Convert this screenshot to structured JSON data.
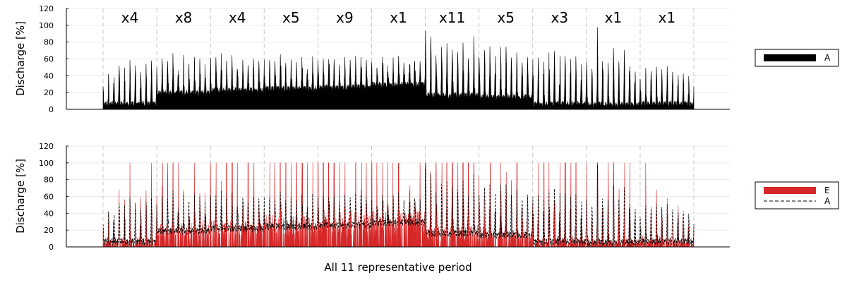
{
  "chart_data": [
    {
      "type": "area",
      "ylabel": "Discharge [%]",
      "ylim": [
        0,
        120
      ],
      "yticks": [
        0,
        20,
        40,
        60,
        80,
        100,
        120
      ],
      "grid": true,
      "legend_position": "right",
      "period_labels": [
        "x4",
        "x8",
        "x4",
        "x5",
        "x9",
        "x1",
        "x11",
        "x5",
        "x3",
        "x1",
        "x1"
      ],
      "series": [
        {
          "name": "A",
          "color": "#000000",
          "style": "filled",
          "daily_peaks": [
            [
              30,
              45,
              59,
              55,
              50,
              60,
              57,
              47,
              55,
              60
            ],
            [
              52,
              66,
              60,
              69,
              60,
              67,
              56,
              68,
              62,
              55
            ],
            [
              63,
              65,
              67,
              60,
              66,
              52,
              64,
              58,
              66,
              60
            ],
            [
              62,
              65,
              60,
              66,
              58,
              65,
              62,
              64,
              60,
              65
            ],
            [
              62,
              60,
              65,
              62,
              58,
              64,
              60,
              65,
              63,
              62
            ],
            [
              60,
              52,
              64,
              55,
              62,
              68,
              60,
              70,
              58,
              62
            ],
            [
              95,
              96,
              60,
              80,
              82,
              78,
              75,
              80,
              65,
              90
            ],
            [
              62,
              78,
              75,
              80,
              77,
              80,
              62,
              75,
              62,
              65
            ],
            [
              63,
              65,
              70,
              75,
              73,
              80,
              70,
              75,
              65,
              68
            ],
            [
              60,
              52,
              98,
              60,
              57,
              75,
              60,
              72,
              62,
              58
            ],
            [
              35,
              52,
              50,
              52,
              48,
              52,
              45,
              50,
              43,
              42
            ]
          ],
          "baseline_levels": [
            2,
            15,
            18,
            20,
            22,
            25,
            12,
            10,
            2,
            1,
            2
          ]
        }
      ]
    },
    {
      "type": "area",
      "xlabel": "All 11 representative period",
      "ylabel": "Discharge [%]",
      "ylim": [
        0,
        120
      ],
      "yticks": [
        0,
        20,
        40,
        60,
        80,
        100,
        120
      ],
      "grid": true,
      "legend_position": "right",
      "series": [
        {
          "name": "E",
          "color": "#d62728",
          "style": "filled",
          "peak_value": 100
        },
        {
          "name": "A",
          "color": "#000000",
          "style": "dashed"
        }
      ]
    }
  ]
}
